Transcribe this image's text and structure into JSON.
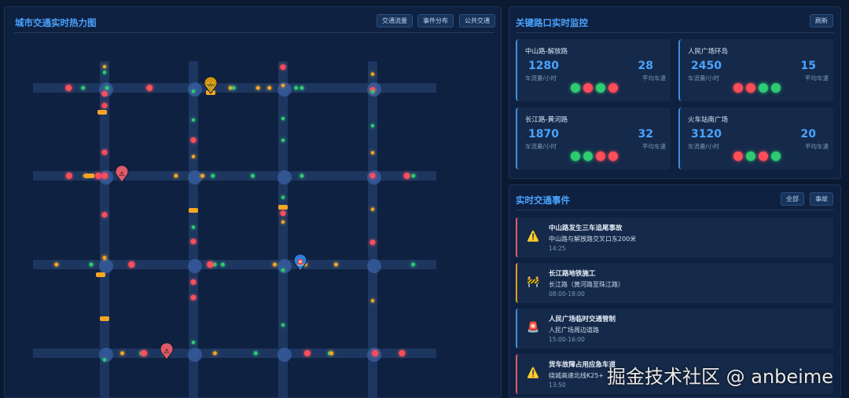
{
  "map": {
    "title": "城市交通实时热力图",
    "buttons": [
      "交通流量",
      "事件分布",
      "公共交通"
    ],
    "markers": [
      {
        "type": "construction",
        "icon": "construction-icon",
        "color": "#d4960e"
      },
      {
        "type": "accident",
        "icon": "warning-icon",
        "color": "#e05a6a"
      },
      {
        "type": "control",
        "icon": "siren-icon",
        "color": "#2f7fd8"
      },
      {
        "type": "accident",
        "icon": "warning-icon",
        "color": "#e05a6a"
      }
    ],
    "colors": {
      "smooth": "#2ecc71",
      "slow": "#f5a623",
      "congested": "#ff4d5a",
      "road": "#1e3a66"
    }
  },
  "monitor": {
    "title": "关键路口实时监控",
    "refresh": "刷新",
    "cards": [
      {
        "name": "中山路-解放路",
        "flow": "1280",
        "flow_label": "车流量/小时",
        "speed": "28",
        "speed_label": "平均车速",
        "lights": [
          "green",
          "red",
          "green",
          "red"
        ]
      },
      {
        "name": "人民广场环岛",
        "flow": "2450",
        "flow_label": "车流量/小时",
        "speed": "15",
        "speed_label": "平均车速",
        "lights": [
          "red",
          "red",
          "green",
          "green"
        ]
      },
      {
        "name": "长江路-黄河路",
        "flow": "1870",
        "flow_label": "车流量/小时",
        "speed": "32",
        "speed_label": "平均车速",
        "lights": [
          "green",
          "green",
          "red",
          "red"
        ]
      },
      {
        "name": "火车站南广场",
        "flow": "3120",
        "flow_label": "车流量/小时",
        "speed": "20",
        "speed_label": "平均车速",
        "lights": [
          "red",
          "green",
          "red",
          "green"
        ]
      }
    ]
  },
  "events": {
    "title": "实时交通事件",
    "filters": [
      "全部",
      "事故"
    ],
    "items": [
      {
        "title": "中山路发生三车追尾事故",
        "desc": "中山路与解放路交叉口东200米",
        "time": "14:25",
        "icon": "⚠️",
        "color": "#e05a6a"
      },
      {
        "title": "长江路地铁施工",
        "desc": "长江路（黄河路至珠江路）",
        "time": "08:00-18:00",
        "icon": "🚧",
        "color": "#e0a020"
      },
      {
        "title": "人民广场临时交通管制",
        "desc": "人民广场周边道路",
        "time": "15:00-16:00",
        "icon": "🚨",
        "color": "#3d8fe0"
      },
      {
        "title": "货车故障占用应急车道",
        "desc": "绕城高速北线K25+",
        "time": "13:50",
        "icon": "⚠️",
        "color": "#e05a6a"
      }
    ]
  },
  "watermark": "掘金技术社区 @ anbeime"
}
